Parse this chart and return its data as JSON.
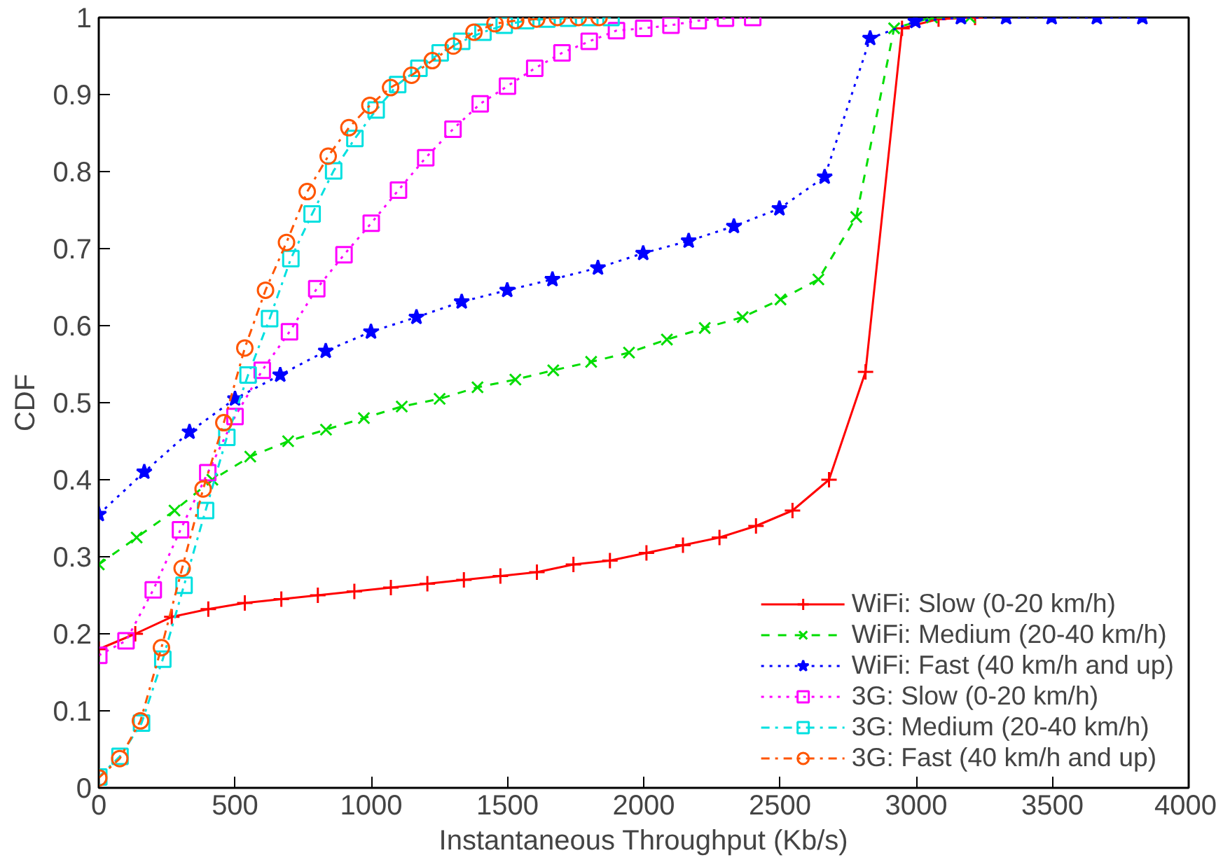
{
  "chart_data": {
    "type": "line",
    "xlabel": "Instantaneous Throughput (Kb/s)",
    "ylabel": "CDF",
    "xlim": [
      0,
      4000
    ],
    "xticks": [
      0,
      500,
      1000,
      1500,
      2000,
      2500,
      3000,
      3500,
      4000
    ],
    "ylim": [
      0,
      1
    ],
    "yticks": [
      0,
      0.1,
      0.2,
      0.3,
      0.4,
      0.5,
      0.6,
      0.7,
      0.8,
      0.9,
      1
    ],
    "legend": "bottom right",
    "series": [
      {
        "name": "WiFi: Slow (0-20 km/h)",
        "color": "#ff0000",
        "marker": "cross",
        "line_style": "solid",
        "x": [
          0,
          134,
          268,
          402,
          536,
          670,
          804,
          938,
          1072,
          1206,
          1340,
          1474,
          1608,
          1742,
          1876,
          2010,
          2144,
          2278,
          2412,
          2546,
          2680,
          2814,
          2948,
          3082,
          3216
        ],
        "values": [
          0.18,
          0.2,
          0.222,
          0.232,
          0.24,
          0.245,
          0.25,
          0.255,
          0.26,
          0.265,
          0.27,
          0.275,
          0.28,
          0.29,
          0.295,
          0.305,
          0.315,
          0.325,
          0.34,
          0.36,
          0.4,
          0.54,
          0.986,
          0.998,
          1.0
        ]
      },
      {
        "name": "WiFi: Medium (20-40 km/h)",
        "color": "#00dd00",
        "marker": "x",
        "line_style": "dashed",
        "x": [
          0,
          139,
          278,
          417,
          556,
          695,
          834,
          973,
          1112,
          1251,
          1390,
          1529,
          1668,
          1807,
          1946,
          2085,
          2224,
          2363,
          2502,
          2641,
          2780,
          2919,
          3058,
          3197
        ],
        "values": [
          0.29,
          0.325,
          0.36,
          0.4,
          0.43,
          0.45,
          0.465,
          0.48,
          0.495,
          0.505,
          0.52,
          0.53,
          0.542,
          0.553,
          0.565,
          0.582,
          0.597,
          0.611,
          0.634,
          0.66,
          0.741,
          0.986,
          1.0,
          1.0
        ]
      },
      {
        "name": "WiFi: Fast (40 km/h and up)",
        "color": "#0000ff",
        "marker": "star",
        "line_style": "dotted",
        "x": [
          0,
          167,
          333,
          500,
          666,
          833,
          999,
          1166,
          1332,
          1499,
          1665,
          1832,
          1998,
          2165,
          2331,
          2498,
          2664,
          2831,
          2997,
          3164,
          3330,
          3497,
          3663,
          3830
        ],
        "values": [
          0.355,
          0.41,
          0.462,
          0.505,
          0.536,
          0.567,
          0.592,
          0.611,
          0.631,
          0.646,
          0.66,
          0.675,
          0.694,
          0.71,
          0.729,
          0.752,
          0.793,
          0.973,
          0.995,
          1.0,
          1.0,
          1.0,
          1.0,
          1.0
        ]
      },
      {
        "name": "3G: Slow (0-20 km/h)",
        "color": "#ff00ff",
        "marker": "square",
        "line_style": "dotted",
        "x": [
          0,
          100,
          200,
          300,
          400,
          500,
          600,
          700,
          800,
          900,
          1000,
          1100,
          1200,
          1300,
          1400,
          1500,
          1600,
          1700,
          1800,
          1900,
          2000,
          2100,
          2200,
          2300,
          2400
        ],
        "values": [
          0.172,
          0.191,
          0.257,
          0.335,
          0.409,
          0.482,
          0.542,
          0.592,
          0.648,
          0.692,
          0.733,
          0.776,
          0.818,
          0.855,
          0.888,
          0.911,
          0.934,
          0.954,
          0.969,
          0.983,
          0.986,
          0.99,
          0.996,
          0.999,
          1.0
        ]
      },
      {
        "name": "3G: Medium (20-40 km/h)",
        "color": "#00e0e0",
        "marker": "square",
        "line_style": "dashdot",
        "x": [
          0,
          78,
          157,
          235,
          313,
          392,
          470,
          548,
          627,
          705,
          783,
          862,
          940,
          1018,
          1097,
          1175,
          1253,
          1332,
          1410,
          1488,
          1567,
          1645,
          1723,
          1802,
          1880
        ],
        "values": [
          0.014,
          0.041,
          0.084,
          0.167,
          0.263,
          0.36,
          0.455,
          0.536,
          0.609,
          0.687,
          0.745,
          0.801,
          0.843,
          0.88,
          0.913,
          0.934,
          0.954,
          0.969,
          0.981,
          0.99,
          0.996,
          0.998,
          0.999,
          1.0,
          1.0
        ]
      },
      {
        "name": "3G: Fast (40 km/h and up)",
        "color": "#ff5500",
        "marker": "circle",
        "line_style": "dashdot",
        "x": [
          0,
          77,
          153,
          230,
          306,
          383,
          459,
          536,
          612,
          689,
          765,
          842,
          918,
          995,
          1071,
          1148,
          1224,
          1301,
          1377,
          1454,
          1530,
          1607,
          1683,
          1760,
          1836
        ],
        "values": [
          0.013,
          0.038,
          0.087,
          0.182,
          0.285,
          0.388,
          0.474,
          0.571,
          0.646,
          0.708,
          0.774,
          0.82,
          0.857,
          0.886,
          0.909,
          0.925,
          0.944,
          0.963,
          0.981,
          0.992,
          0.996,
          0.998,
          1.0,
          1.0,
          1.0
        ]
      }
    ]
  }
}
